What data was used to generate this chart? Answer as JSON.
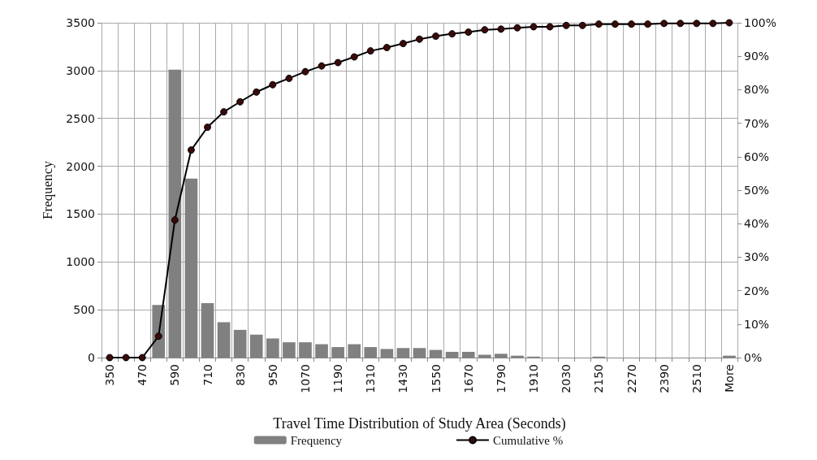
{
  "chart_data": {
    "type": "bar",
    "xlabel": "Travel Time Distribution of Study Area (Seconds)",
    "ylabel": "Frequency",
    "categories": [
      "350",
      null,
      "470",
      null,
      "590",
      null,
      "710",
      null,
      "830",
      null,
      "950",
      null,
      "1070",
      null,
      "1190",
      null,
      "1310",
      null,
      "1430",
      null,
      "1550",
      null,
      "1670",
      null,
      "1790",
      null,
      "1910",
      null,
      "2030",
      null,
      "2150",
      null,
      "2270",
      null,
      "2390",
      null,
      "2510",
      null,
      "More"
    ],
    "series": [
      {
        "name": "Frequency",
        "color": "#808080",
        "values": [
          0,
          0,
          0,
          550,
          3010,
          1870,
          570,
          370,
          290,
          240,
          200,
          160,
          160,
          140,
          110,
          140,
          110,
          90,
          100,
          100,
          80,
          60,
          60,
          30,
          40,
          20,
          10,
          0,
          0,
          0,
          10,
          0,
          0,
          0,
          0,
          0,
          0,
          0,
          20
        ]
      },
      {
        "name": "Cumulative %",
        "type": "line",
        "axis": "y2",
        "color": "#000000",
        "marker": "circle",
        "values": [
          0,
          0,
          0,
          6.4,
          41.1,
          62.0,
          68.8,
          73.4,
          76.4,
          79.3,
          81.5,
          83.4,
          85.4,
          87.1,
          88.1,
          89.8,
          91.6,
          92.6,
          93.8,
          95.1,
          96.0,
          96.7,
          97.2,
          97.9,
          98.1,
          98.5,
          98.8,
          98.8,
          99.2,
          99.2,
          99.6,
          99.6,
          99.6,
          99.6,
          99.8,
          99.8,
          99.8,
          99.8,
          100
        ]
      }
    ],
    "ylim": [
      0,
      3500
    ],
    "yticks": [
      0,
      500,
      1000,
      1500,
      2000,
      2500,
      3000,
      3500
    ],
    "y2lim": [
      0,
      100
    ],
    "y2ticks": [
      {
        "value": 0,
        "label": "0%"
      },
      {
        "value": 10,
        "label": "10%"
      },
      {
        "value": 20,
        "label": "20%"
      },
      {
        "value": 30,
        "label": "30%"
      },
      {
        "value": 40,
        "label": "40%"
      },
      {
        "value": 50,
        "label": "50%"
      },
      {
        "value": 60,
        "label": "60%"
      },
      {
        "value": 70,
        "label": "70%"
      },
      {
        "value": 80,
        "label": "80%"
      },
      {
        "value": 90,
        "label": "90%"
      },
      {
        "value": 100,
        "label": "100%"
      }
    ],
    "grid": true,
    "legend": "bottom"
  }
}
